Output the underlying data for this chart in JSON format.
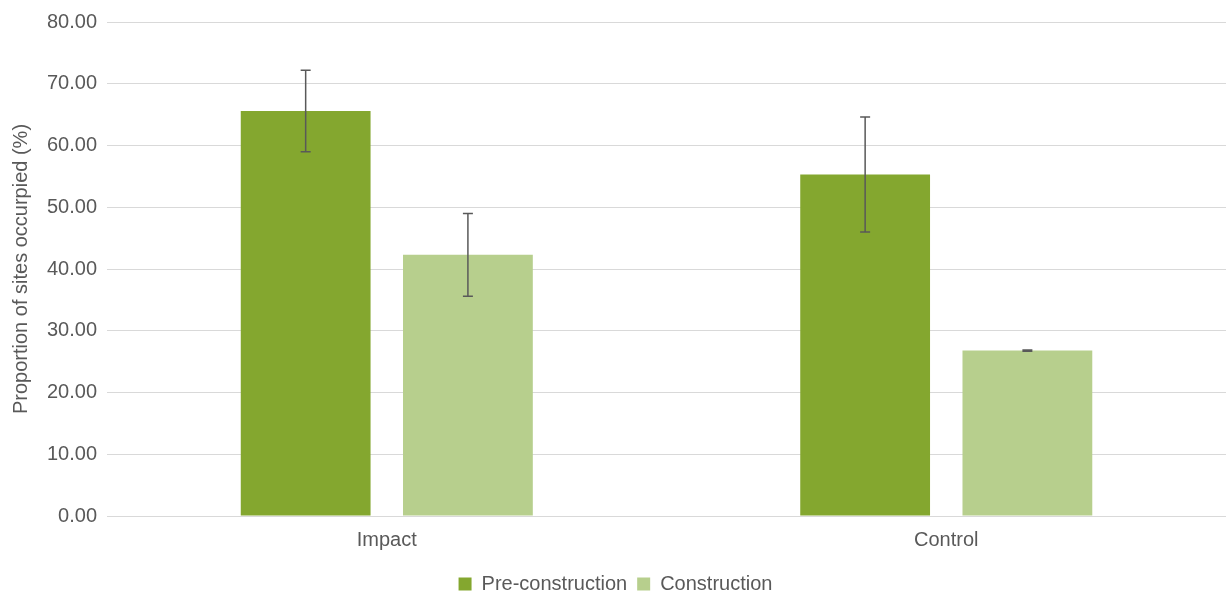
{
  "chart_data": {
    "type": "bar",
    "ylabel": "Proportion of sites occurpied (%)",
    "categories": [
      "Impact",
      "Control"
    ],
    "series": [
      {
        "name": "Pre-construction",
        "color": "#84a72f",
        "values": [
          65.6,
          55.3
        ],
        "errors": [
          6.6,
          9.3
        ]
      },
      {
        "name": "Construction",
        "color": "#b7cf8d",
        "values": [
          42.3,
          26.8
        ],
        "errors": [
          6.7,
          0.1
        ]
      }
    ],
    "ylim": [
      0,
      80
    ],
    "yticks": [
      {
        "value": 0,
        "label": "0.00"
      },
      {
        "value": 10,
        "label": "10.00"
      },
      {
        "value": 20,
        "label": "20.00"
      },
      {
        "value": 30,
        "label": "30.00"
      },
      {
        "value": 40,
        "label": "40.00"
      },
      {
        "value": 50,
        "label": "50.00"
      },
      {
        "value": 60,
        "label": "60.00"
      },
      {
        "value": 70,
        "label": "70.00"
      },
      {
        "value": 80,
        "label": "80.00"
      }
    ],
    "grid": "y",
    "legend": "bottom"
  }
}
